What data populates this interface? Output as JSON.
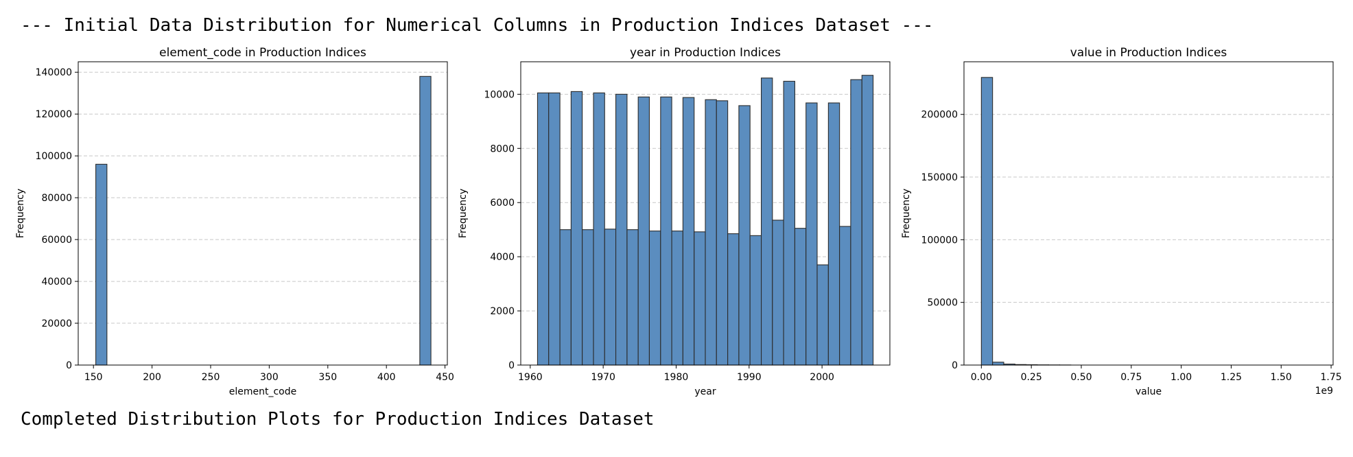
{
  "output": {
    "header_line": "--- Initial Data Distribution for Numerical Columns in Production Indices Dataset ---",
    "footer_line": "Completed Distribution Plots for Production Indices Dataset"
  },
  "colors": {
    "bar_fill": "#5b8dbf",
    "bar_edge": "#2b2b2b",
    "grid": "#c8c8c8"
  },
  "chart_data": [
    {
      "type": "bar",
      "title": "element_code in Production Indices",
      "xlabel": "element_code",
      "ylabel": "Frequency",
      "xlim": [
        137,
        452
      ],
      "ylim": [
        0,
        145000
      ],
      "xticks": [
        150,
        200,
        250,
        300,
        350,
        400,
        450
      ],
      "xtick_labels": [
        "150",
        "200",
        "250",
        "300",
        "350",
        "400",
        "450"
      ],
      "yticks": [
        0,
        20000,
        40000,
        60000,
        80000,
        100000,
        120000,
        140000
      ],
      "ytick_labels": [
        "0",
        "20000",
        "40000",
        "60000",
        "80000",
        "100000",
        "120000",
        "140000"
      ],
      "offset_label": "",
      "grid": "y-dashed",
      "bins": [
        [
          152,
          161.5,
          96000
        ],
        [
          428.5,
          438,
          138000
        ]
      ]
    },
    {
      "type": "bar",
      "title": "year in Production Indices",
      "xlabel": "year",
      "ylabel": "Frequency",
      "xlim": [
        1958.7,
        2009.3
      ],
      "ylim": [
        0,
        11200
      ],
      "xticks": [
        1960,
        1970,
        1980,
        1990,
        2000
      ],
      "xtick_labels": [
        "1960",
        "1970",
        "1980",
        "1990",
        "2000"
      ],
      "yticks": [
        0,
        2000,
        4000,
        6000,
        8000,
        10000
      ],
      "ytick_labels": [
        "0",
        "2000",
        "4000",
        "6000",
        "8000",
        "10000"
      ],
      "offset_label": "",
      "grid": "y-dashed",
      "bins": [
        [
          1961.0,
          1962.53,
          10050
        ],
        [
          1962.53,
          1964.07,
          10050
        ],
        [
          1964.07,
          1965.6,
          5000
        ],
        [
          1965.6,
          1967.13,
          10100
        ],
        [
          1967.13,
          1968.67,
          5000
        ],
        [
          1968.67,
          1970.2,
          10050
        ],
        [
          1970.2,
          1971.73,
          5020
        ],
        [
          1971.73,
          1973.27,
          10000
        ],
        [
          1973.27,
          1974.8,
          5000
        ],
        [
          1974.8,
          1976.33,
          9900
        ],
        [
          1976.33,
          1977.87,
          4950
        ],
        [
          1977.87,
          1979.4,
          9900
        ],
        [
          1979.4,
          1980.93,
          4950
        ],
        [
          1980.93,
          1982.47,
          9880
        ],
        [
          1982.47,
          1984.0,
          4920
        ],
        [
          1984.0,
          1985.53,
          9800
        ],
        [
          1985.53,
          1987.07,
          9760
        ],
        [
          1987.07,
          1988.6,
          4850
        ],
        [
          1988.6,
          1990.13,
          9580
        ],
        [
          1990.13,
          1991.67,
          4780
        ],
        [
          1991.67,
          1993.2,
          10600
        ],
        [
          1993.2,
          1994.73,
          5350
        ],
        [
          1994.73,
          1996.27,
          10480
        ],
        [
          1996.27,
          1997.8,
          5050
        ],
        [
          1997.8,
          1999.33,
          9680
        ],
        [
          1999.33,
          2000.87,
          3700
        ],
        [
          2000.87,
          2002.4,
          9680
        ],
        [
          2002.4,
          2003.93,
          5120
        ],
        [
          2003.93,
          2005.47,
          10540
        ],
        [
          2005.47,
          2007.0,
          10700
        ]
      ]
    },
    {
      "type": "bar",
      "title": "value in Production Indices",
      "xlabel": "value",
      "ylabel": "Frequency",
      "xlim": [
        -0.087,
        1.76
      ],
      "ylim": [
        0,
        242000
      ],
      "xticks": [
        0,
        0.25,
        0.5,
        0.75,
        1.0,
        1.25,
        1.5,
        1.75
      ],
      "xtick_labels": [
        "0.00",
        "0.25",
        "0.50",
        "0.75",
        "1.00",
        "1.25",
        "1.50",
        "1.75"
      ],
      "yticks": [
        0,
        50000,
        100000,
        150000,
        200000
      ],
      "ytick_labels": [
        "0",
        "50000",
        "100000",
        "150000",
        "200000"
      ],
      "offset_label": "1e9",
      "grid": "y-dashed",
      "bins": [
        [
          0.0,
          0.056,
          229500
        ],
        [
          0.056,
          0.112,
          2300
        ],
        [
          0.112,
          0.168,
          800
        ],
        [
          0.168,
          0.224,
          400
        ],
        [
          0.224,
          0.28,
          250
        ],
        [
          0.28,
          0.336,
          150
        ],
        [
          0.336,
          0.392,
          100
        ],
        [
          0.392,
          0.448,
          60
        ]
      ]
    }
  ]
}
